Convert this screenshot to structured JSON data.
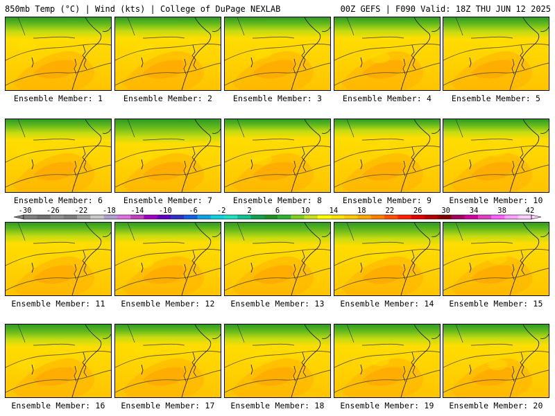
{
  "header": {
    "left": "850mb Temp (°C) | Wind (kts) | College of DuPage NEXLAB",
    "right": "00Z GEFS | F090 Valid: 18Z THU JUN 12 2025"
  },
  "members": [
    {
      "label": "Ensemble Member: 1",
      "level": 0.5
    },
    {
      "label": "Ensemble Member: 2",
      "level": 0.45
    },
    {
      "label": "Ensemble Member: 3",
      "level": 0.45
    },
    {
      "label": "Ensemble Member: 4",
      "level": 0.45
    },
    {
      "label": "Ensemble Member: 5",
      "level": 0.5
    },
    {
      "label": "Ensemble Member: 6",
      "level": 0.45
    },
    {
      "label": "Ensemble Member: 7",
      "level": 0.7
    },
    {
      "label": "Ensemble Member: 8",
      "level": 0.35
    },
    {
      "label": "Ensemble Member: 9",
      "level": 0.3
    },
    {
      "label": "Ensemble Member: 10",
      "level": 0.4
    },
    {
      "label": "Ensemble Member: 11",
      "level": 0.45
    },
    {
      "label": "Ensemble Member: 12",
      "level": 0.4
    },
    {
      "label": "Ensemble Member: 13",
      "level": 0.55
    },
    {
      "label": "Ensemble Member: 14",
      "level": 0.6
    },
    {
      "label": "Ensemble Member: 15",
      "level": 0.45
    },
    {
      "label": "Ensemble Member: 16",
      "level": 0.55
    },
    {
      "label": "Ensemble Member: 17",
      "level": 0.4
    },
    {
      "label": "Ensemble Member: 18",
      "level": 0.5
    },
    {
      "label": "Ensemble Member: 19",
      "level": 0.5
    },
    {
      "label": "Ensemble Member: 20",
      "level": 0.45
    }
  ],
  "colorbar": {
    "labels": [
      "-30",
      "-26",
      "-22",
      "-18",
      "-14",
      "-10",
      "-6",
      "-2",
      "2",
      "6",
      "10",
      "14",
      "18",
      "22",
      "26",
      "30",
      "34",
      "38",
      "42"
    ],
    "colors": [
      "#808080",
      "#707070",
      "#909090",
      "#7d7d7d",
      "#a0a0a0",
      "#c8c8c8",
      "#b0a0d0",
      "#e070e0",
      "#c040c0",
      "#a000c0",
      "#6000c0",
      "#3030c0",
      "#1060e0",
      "#10a0e0",
      "#10d0e0",
      "#20e0c0",
      "#10c090",
      "#10a050",
      "#209020",
      "#30b030",
      "#80d020",
      "#c8e020",
      "#ffff00",
      "#ffe000",
      "#ffc800",
      "#ffa800",
      "#ff8000",
      "#ff5000",
      "#ff2000",
      "#e00000",
      "#b00000",
      "#800000",
      "#a00060",
      "#d000a0",
      "#e040c0",
      "#ff60ff",
      "#ffa0ff",
      "#ffd0ff"
    ]
  }
}
